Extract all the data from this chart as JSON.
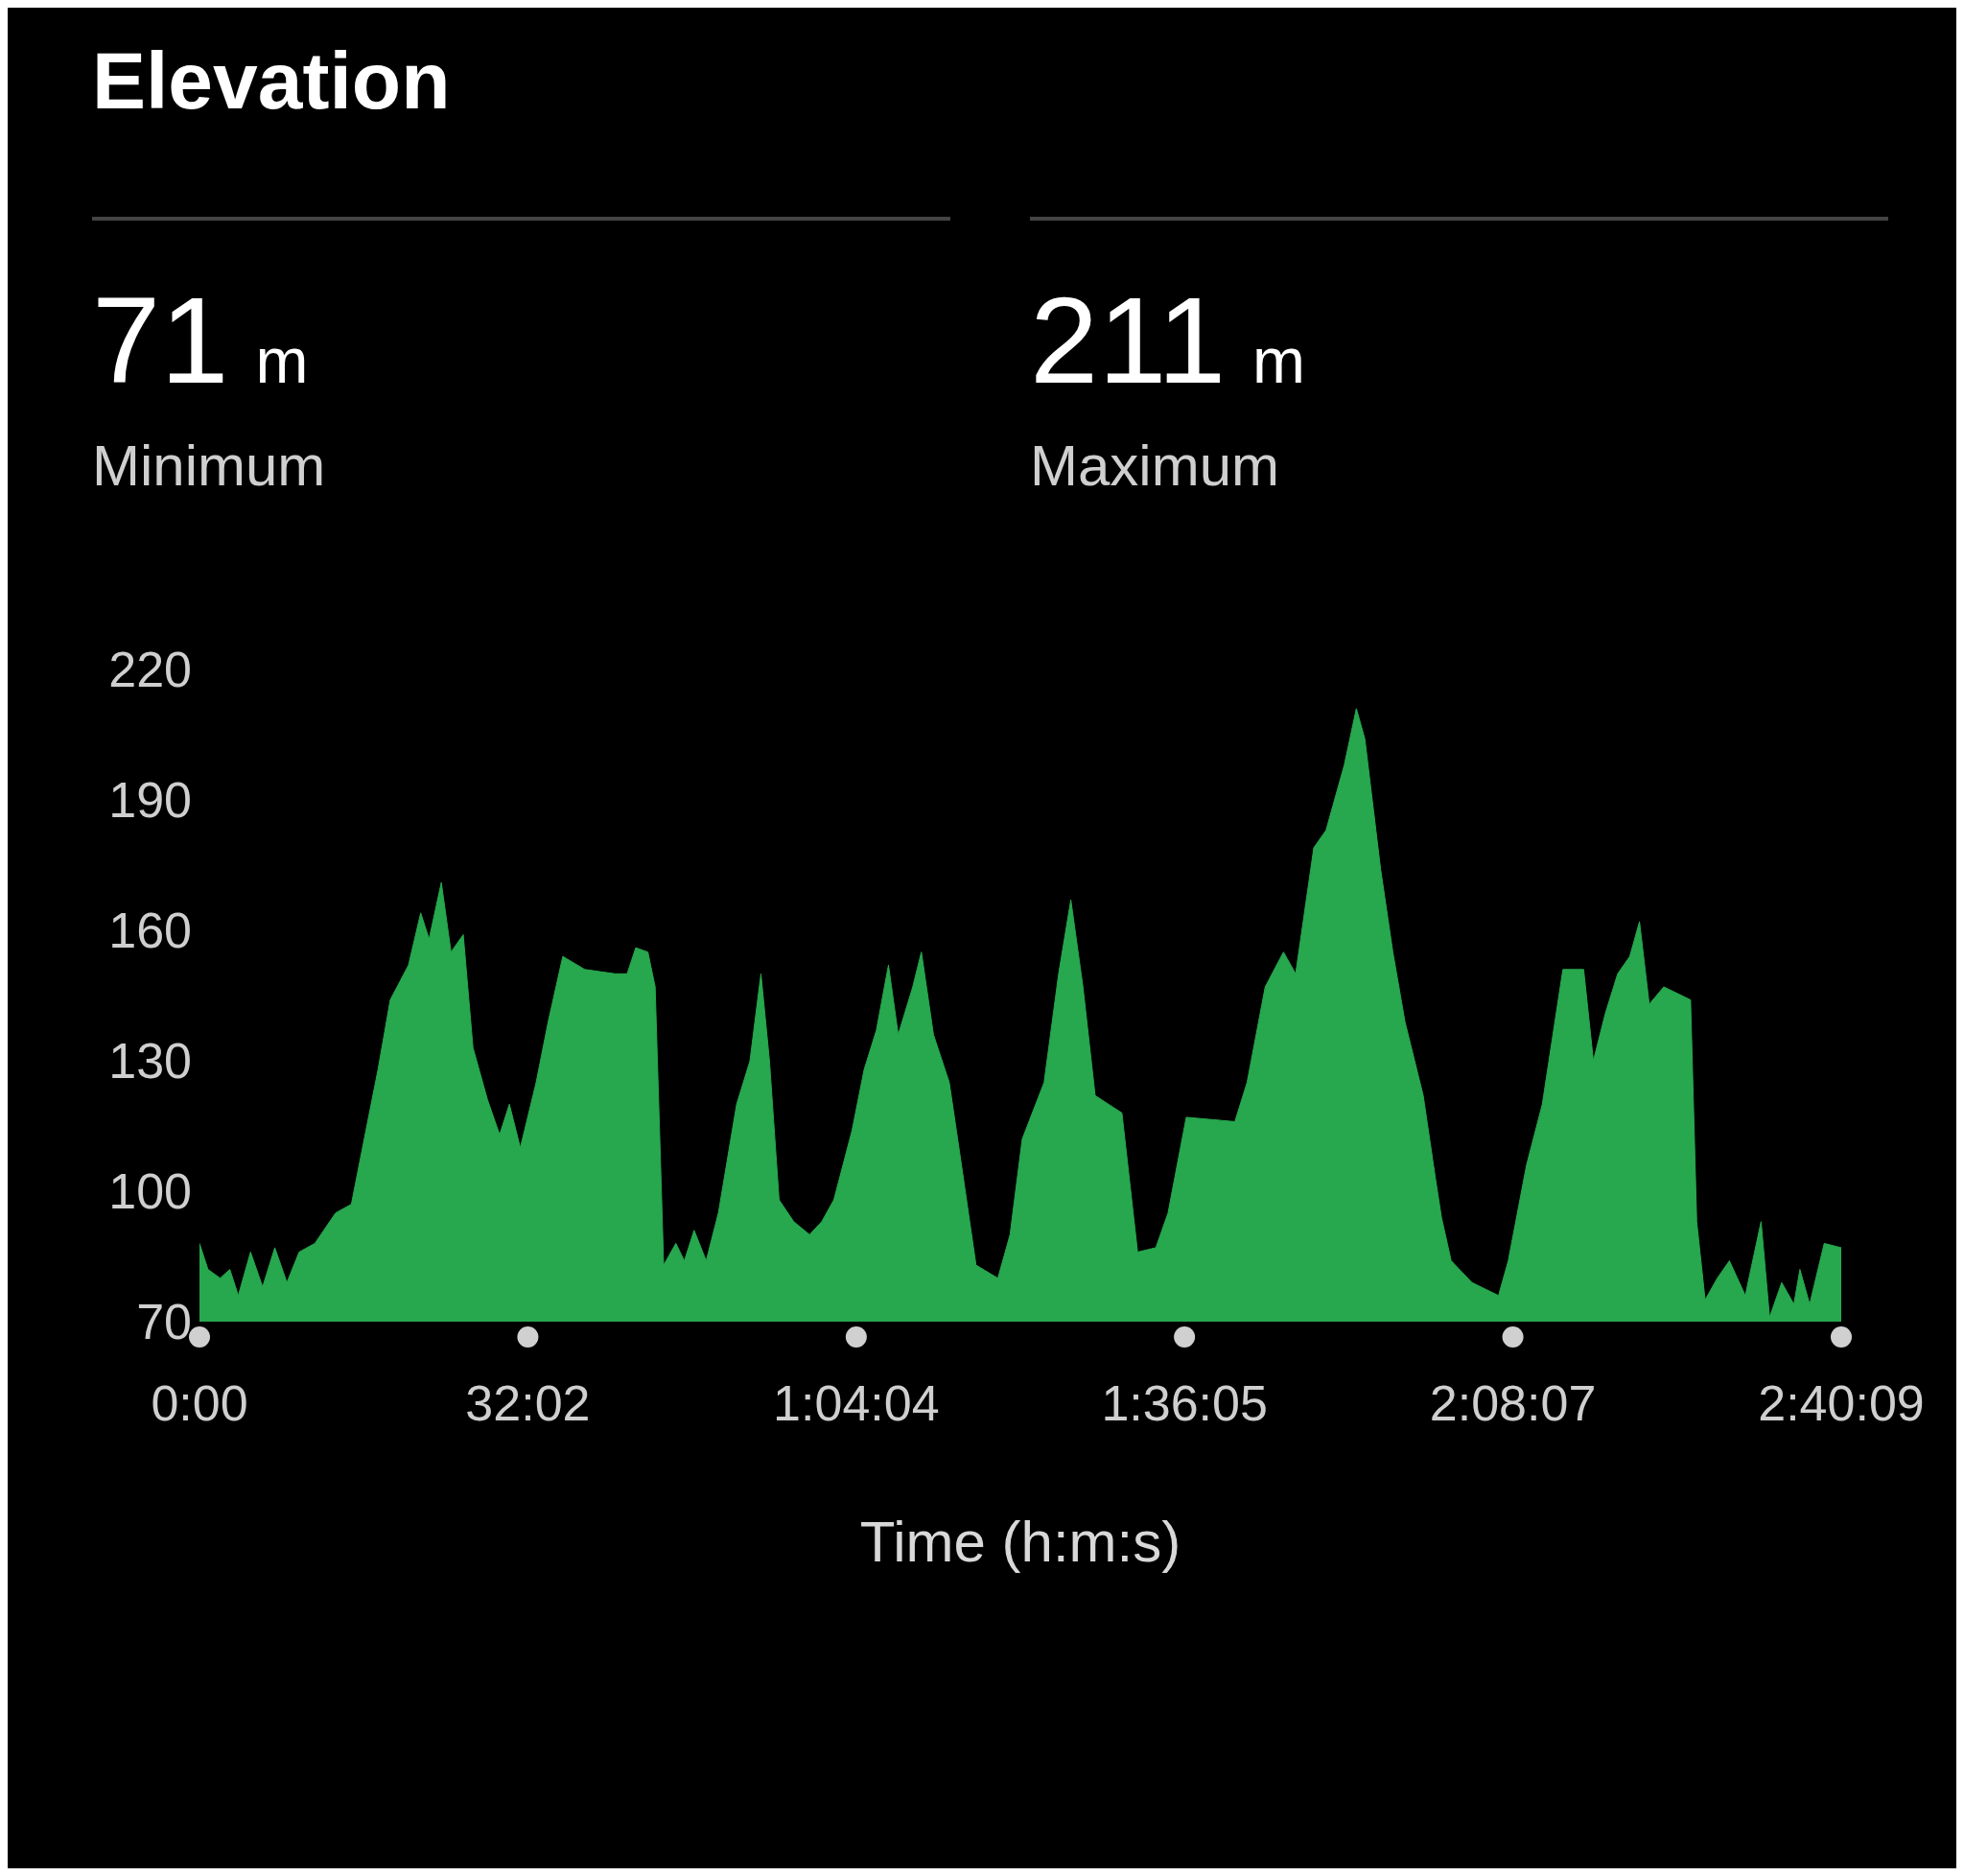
{
  "chart_data": {
    "type": "area",
    "title": "Elevation",
    "xlabel": "Time (h:m:s)",
    "annotations": [
      "71 m",
      "Minimum",
      "211 m",
      "Maximum"
    ],
    "x": [
      0,
      0.83,
      2.02,
      2.96,
      3.79,
      4.98,
      6.16,
      7.35,
      8.53,
      9.72,
      11.26,
      13.28,
      14.82,
      16.24,
      17.42,
      18.61,
      20.39,
      21.58,
      22.4,
      23.59,
      24.54,
      25.73,
      26.68,
      28.1,
      29.28,
      30.23,
      31.3,
      32.84,
      34.02,
      35.44,
      37.58,
      40.54,
      41.72,
      42.56,
      43.74,
      44.45,
      45.28,
      46.47,
      47.3,
      48.25,
      49.43,
      50.62,
      52.4,
      53.7,
      54.77,
      55.6,
      56.54,
      57.97,
      59.51,
      60.7,
      61.88,
      63.66,
      64.84,
      66.03,
      67.21,
      68.16,
      69.58,
      70.42,
      71.6,
      73.14,
      74.33,
      75.75,
      77.88,
      79.07,
      80.26,
      82.39,
      83.81,
      85,
      86.18,
      87.37,
      89.98,
      91.51,
      93.29,
      94.48,
      96.26,
      101,
      102.19,
      103.96,
      105.74,
      106.93,
      108.7,
      109.89,
      111.67,
      112.85,
      113.68,
      115.22,
      116.41,
      117.59,
      119.37,
      120.56,
      121.15,
      122.1,
      124.12,
      126.72,
      127.67,
      129.45,
      130.99,
      133,
      135.02,
      135.97,
      137.15,
      138.34,
      139.52,
      140.47,
      141.42,
      142.84,
      145.45,
      146.05,
      146.87,
      148.06,
      149.24,
      150.79,
      152.33,
      153.16,
      154.34,
      155.53,
      156.12,
      157.07,
      158.49,
      160.15
    ],
    "series": [
      {
        "color": "#27a84e",
        "values": [
          88,
          82,
          80,
          82,
          76,
          86,
          78,
          87,
          79,
          86,
          88,
          95,
          97,
          114,
          128,
          144,
          152,
          164,
          158,
          171,
          155,
          159,
          133,
          121,
          113,
          120,
          110,
          125,
          139,
          154,
          151,
          150,
          150,
          156,
          155,
          147,
          83,
          88,
          84,
          91,
          84,
          95,
          120,
          130,
          150,
          130,
          98,
          93,
          90,
          93,
          98,
          114,
          128,
          137,
          152,
          136,
          147,
          155,
          136,
          125,
          106,
          83,
          80,
          90,
          112,
          125,
          150,
          167,
          147,
          122,
          118,
          86,
          87,
          95,
          117,
          116,
          125,
          147,
          155,
          150,
          179,
          183,
          198,
          211,
          204,
          174,
          155,
          139,
          122,
          103,
          94,
          84,
          79,
          76,
          84,
          106,
          120,
          151,
          151,
          130,
          141,
          150,
          154,
          162,
          143,
          147,
          144,
          93,
          75,
          80,
          84,
          76,
          93,
          71,
          79,
          74,
          82,
          74,
          88,
          87
        ]
      }
    ],
    "ylim": [
      70,
      220
    ],
    "yticks": [
      70,
      100,
      130,
      160,
      190,
      220
    ],
    "xlim": [
      0,
      160.15
    ],
    "xticks": [
      {
        "value": 0,
        "label": "0:00"
      },
      {
        "value": 32.0333,
        "label": "32:02"
      },
      {
        "value": 64.0667,
        "label": "1:04:04"
      },
      {
        "value": 96.0833,
        "label": "1:36:05"
      },
      {
        "value": 128.1167,
        "label": "2:08:07"
      },
      {
        "value": 160.15,
        "label": "2:40:09"
      }
    ],
    "grid": false,
    "legend": false
  }
}
